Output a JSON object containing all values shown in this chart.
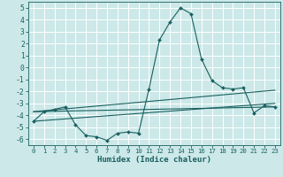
{
  "xlabel": "Humidex (Indice chaleur)",
  "bg_color": "#cce8e8",
  "grid_color": "#ffffff",
  "line_color": "#1a6060",
  "xlim": [
    -0.5,
    23.5
  ],
  "ylim": [
    -6.5,
    5.5
  ],
  "yticks": [
    -6,
    -5,
    -4,
    -3,
    -2,
    -1,
    0,
    1,
    2,
    3,
    4,
    5
  ],
  "xticks": [
    0,
    1,
    2,
    3,
    4,
    5,
    6,
    7,
    8,
    9,
    10,
    11,
    12,
    13,
    14,
    15,
    16,
    17,
    18,
    19,
    20,
    21,
    22,
    23
  ],
  "series1_x": [
    0,
    1,
    2,
    3,
    4,
    5,
    6,
    7,
    8,
    9,
    10,
    11,
    12,
    13,
    14,
    15,
    16,
    17,
    18,
    19,
    20,
    21,
    22,
    23
  ],
  "series1_y": [
    -4.5,
    -3.7,
    -3.5,
    -3.3,
    -4.8,
    -5.7,
    -5.8,
    -6.1,
    -5.5,
    -5.4,
    -5.5,
    -1.8,
    2.3,
    3.8,
    5.0,
    4.5,
    0.7,
    -1.1,
    -1.7,
    -1.8,
    -1.7,
    -3.8,
    -3.2,
    -3.3
  ],
  "series2_x": [
    0,
    23
  ],
  "series2_y": [
    -3.7,
    -3.3
  ],
  "series3_x": [
    0,
    23
  ],
  "series3_y": [
    -3.7,
    -1.9
  ],
  "series4_x": [
    0,
    23
  ],
  "series4_y": [
    -4.5,
    -3.0
  ]
}
